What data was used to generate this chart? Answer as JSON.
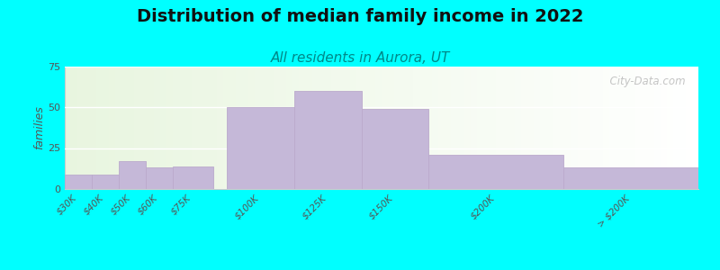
{
  "title": "Distribution of median family income in 2022",
  "subtitle": "All residents in Aurora, UT",
  "ylabel": "families",
  "background_outer": "#00FFFF",
  "bar_color": "#C5B8D8",
  "bar_edge_color": "#BBAACC",
  "categories": [
    "$30K",
    "$40K",
    "$50K",
    "$60K",
    "$75K",
    "$100K",
    "$125K",
    "$150K",
    "$200K",
    "> $200K"
  ],
  "values": [
    9,
    9,
    17,
    13,
    14,
    50,
    60,
    49,
    21,
    13
  ],
  "bar_lefts": [
    0,
    10,
    20,
    30,
    40,
    60,
    85,
    110,
    135,
    185
  ],
  "bar_widths": [
    10,
    10,
    10,
    10,
    15,
    25,
    25,
    25,
    50,
    50
  ],
  "tick_positions": [
    5,
    15,
    25,
    35,
    47.5,
    72.5,
    97.5,
    122.5,
    160,
    210
  ],
  "xlim": [
    0,
    235
  ],
  "ylim": [
    0,
    75
  ],
  "yticks": [
    0,
    25,
    50,
    75
  ],
  "title_fontsize": 14,
  "subtitle_fontsize": 11,
  "subtitle_color": "#008888",
  "watermark": "  City-Data.com",
  "watermark_color": "#bbbbbb"
}
